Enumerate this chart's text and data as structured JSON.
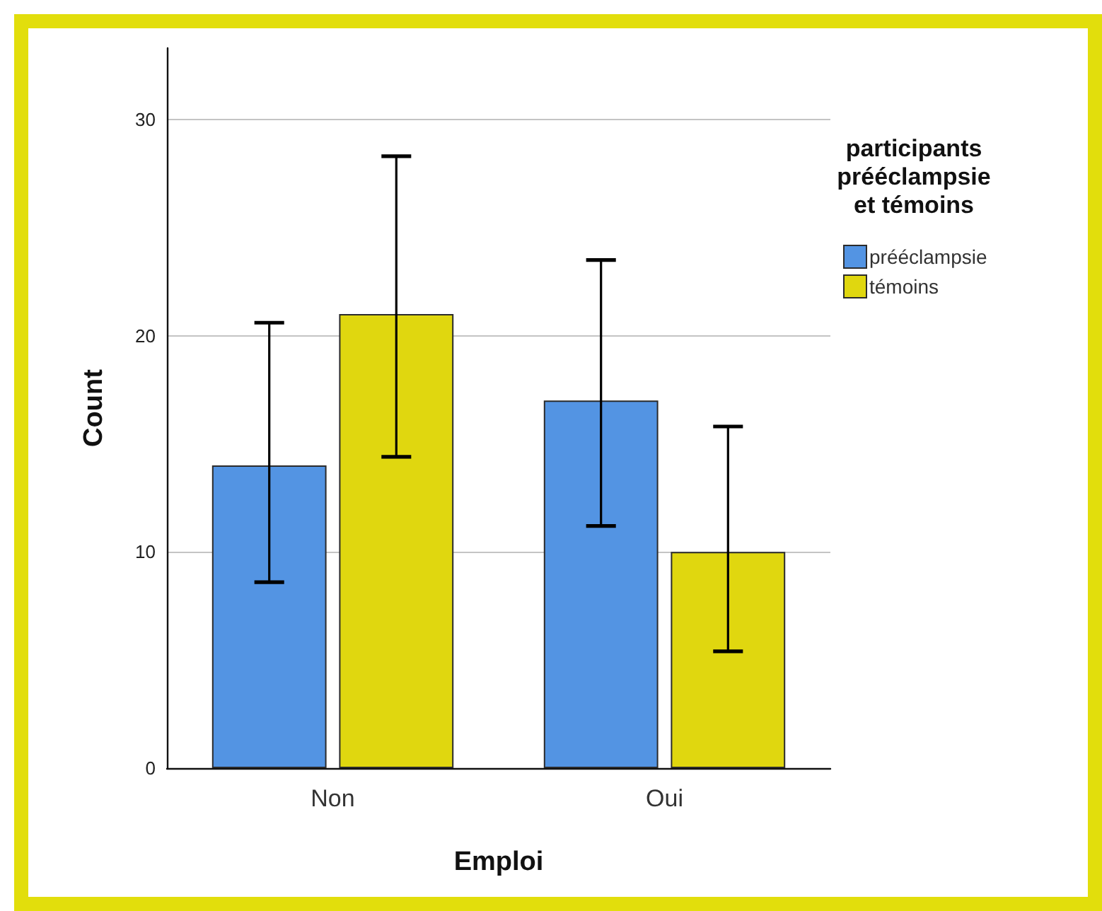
{
  "chart_data": {
    "type": "bar",
    "xlabel": "Emploi",
    "ylabel": "Count",
    "legend_title": "participants\nprééclampsie\net témoins",
    "categories": [
      "Non",
      "Oui"
    ],
    "series": [
      {
        "name": "prééclampsie",
        "color": "#5394e3",
        "values": [
          14,
          17
        ],
        "errors": [
          [
            8.6,
            20.6
          ],
          [
            11.2,
            23.5
          ]
        ]
      },
      {
        "name": "témoins",
        "color": "#e0d70f",
        "values": [
          21,
          10
        ],
        "errors": [
          [
            14.4,
            28.3
          ],
          [
            5.4,
            15.8
          ]
        ]
      }
    ],
    "ylim": [
      0,
      33.3
    ],
    "yticks": [
      0,
      10,
      20,
      30
    ],
    "grid": "y",
    "legend": "top right"
  }
}
